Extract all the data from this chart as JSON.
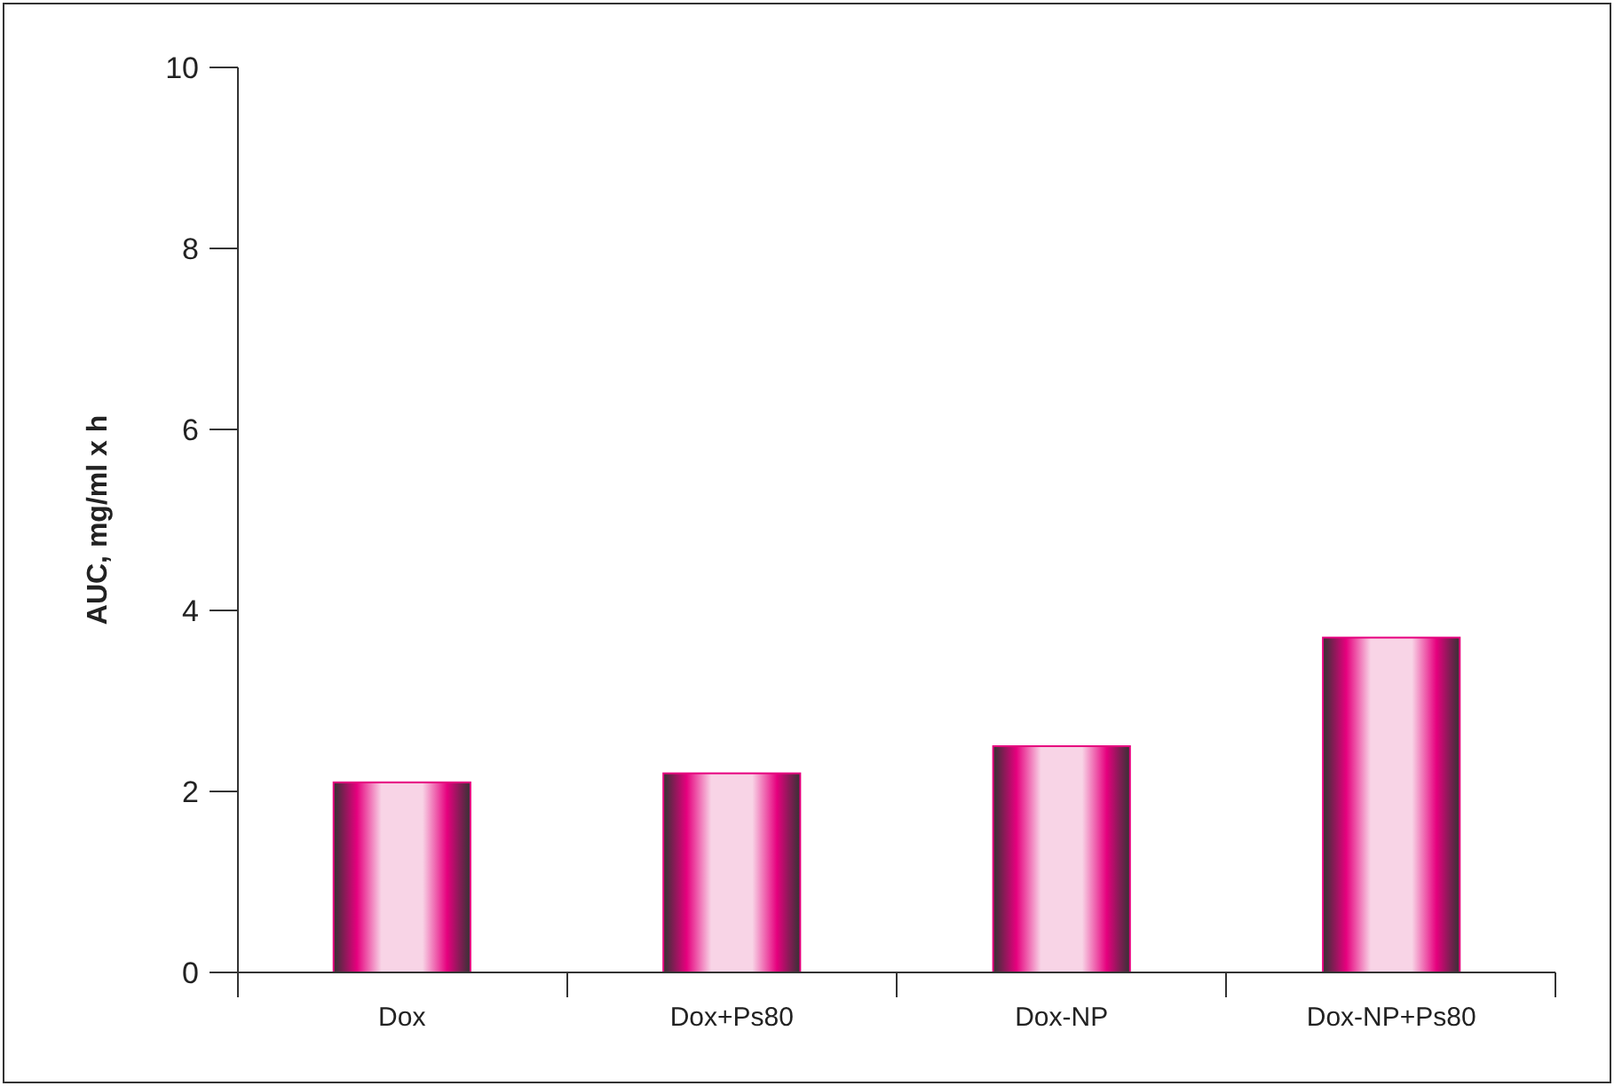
{
  "chart_data": {
    "type": "bar",
    "ylabel": "AUC, mg/ml x h",
    "categories": [
      "Dox",
      "Dox+Ps80",
      "Dox-NP",
      "Dox-NP+Ps80"
    ],
    "values": [
      2.1,
      2.2,
      2.5,
      3.7
    ],
    "color": "#e6007e",
    "ylim": [
      0,
      10
    ],
    "yticks": [
      0,
      2,
      4,
      6,
      8,
      10
    ],
    "grid": false
  }
}
